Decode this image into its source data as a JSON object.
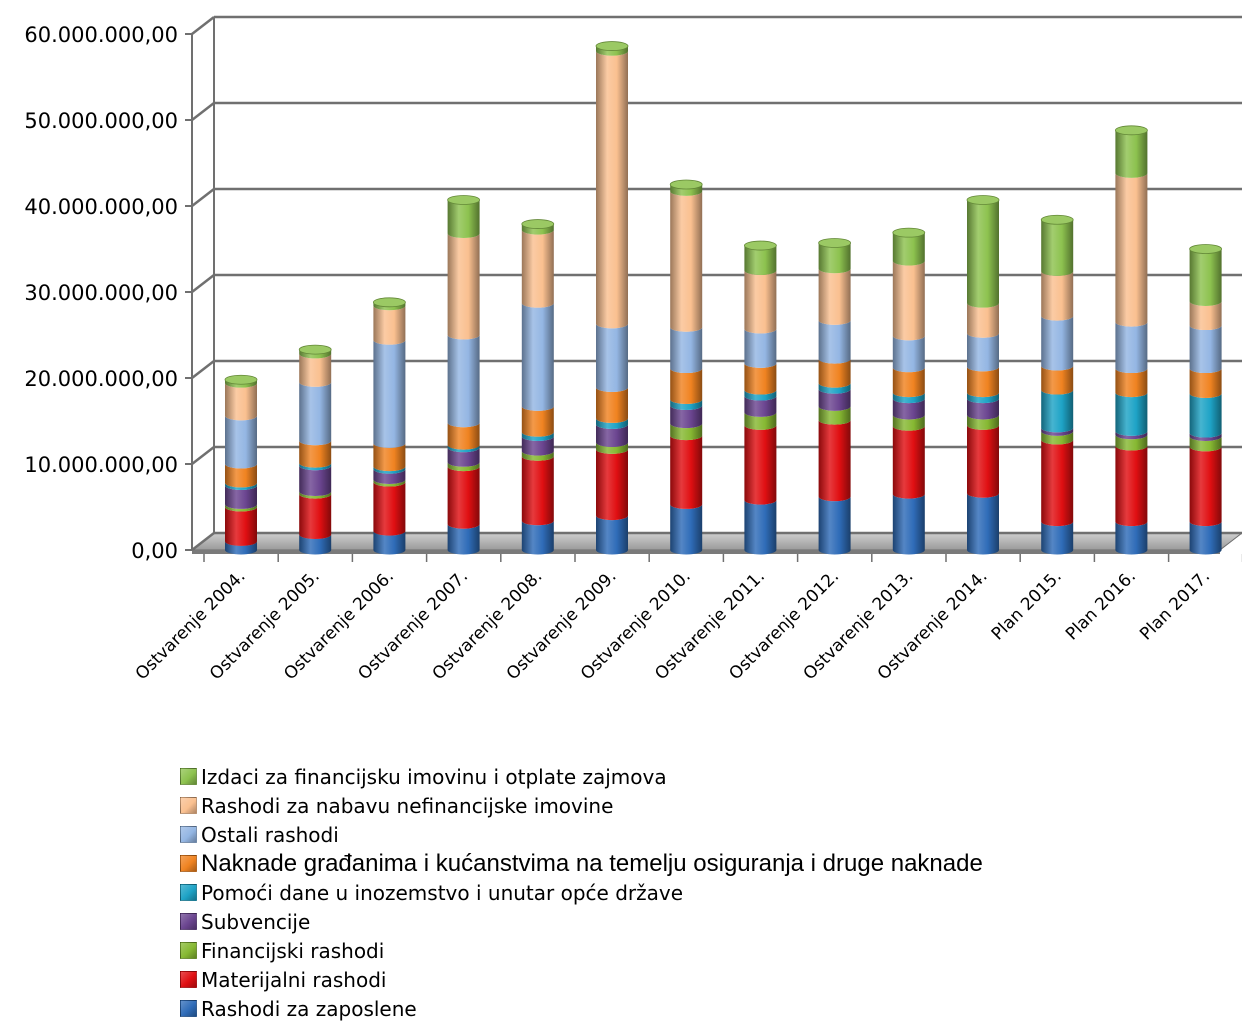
{
  "chart_data": {
    "type": "bar",
    "stacked": true,
    "three_d": true,
    "categories": [
      "Ostvarenje 2004.",
      "Ostvarenje 2005.",
      "Ostvarenje 2006.",
      "Ostvarenje 2007.",
      "Ostvarenje 2008.",
      "Ostvarenje 2009.",
      "Ostvarenje 2010.",
      "Ostvarenje 2011.",
      "Ostvarenje 2012.",
      "Ostvarenje 2013.",
      "Ostvarenje 2014.",
      "Plan 2015.",
      "Plan 2016.",
      "Plan 2017."
    ],
    "y_ticks": [
      "0,00",
      "10.000.000,00",
      "20.000.000,00",
      "30.000.000,00",
      "40.000.000,00",
      "50.000.000,00",
      "60.000.000,00"
    ],
    "ylim": [
      0,
      60000000
    ],
    "grid": true,
    "legend_position": "bottom",
    "series": [
      {
        "name": "Rashodi za zaposlene",
        "color": "#2f6cb8",
        "values": [
          1000000,
          1800000,
          2200000,
          3000000,
          3400000,
          4000000,
          5300000,
          5800000,
          6200000,
          6500000,
          6600000,
          3300000,
          3300000,
          3300000
        ]
      },
      {
        "name": "Materijalni rashodi",
        "color": "#e00f12",
        "values": [
          4000000,
          4700000,
          5700000,
          6700000,
          7500000,
          7700000,
          8000000,
          8700000,
          8900000,
          7900000,
          7900000,
          9500000,
          8800000,
          8700000
        ]
      },
      {
        "name": "Financijski rashodi",
        "color": "#86b832",
        "values": [
          300000,
          300000,
          300000,
          500000,
          600000,
          800000,
          1400000,
          1500000,
          1600000,
          1300000,
          1200000,
          1000000,
          1300000,
          1200000
        ]
      },
      {
        "name": "Subvencije",
        "color": "#6b4590",
        "values": [
          2200000,
          3000000,
          1200000,
          1700000,
          1700000,
          2100000,
          2100000,
          1900000,
          2000000,
          1900000,
          1900000,
          400000,
          400000,
          400000
        ]
      },
      {
        "name": "Pomoći dane u inozemstvo i unutar opće države",
        "color": "#1ea3c6",
        "values": [
          300000,
          300000,
          300000,
          300000,
          500000,
          700000,
          700000,
          700000,
          700000,
          700000,
          700000,
          4400000,
          4500000,
          4600000
        ]
      },
      {
        "name": "Naknade građanima i kućanstvima na temelju osiguranja i druge naknade",
        "color": "#f08321",
        "values": [
          2200000,
          2600000,
          2700000,
          2600000,
          3000000,
          3600000,
          3600000,
          3100000,
          2800000,
          2900000,
          3000000,
          2800000,
          2800000,
          2900000
        ]
      },
      {
        "name": "Ostali rashodi",
        "color": "#94b6e3",
        "values": [
          5600000,
          6800000,
          12000000,
          10200000,
          12000000,
          7400000,
          4800000,
          4000000,
          4500000,
          3700000,
          3900000,
          5800000,
          5400000,
          5000000
        ]
      },
      {
        "name": "Rashodi za nabavu nefinancijske imovine",
        "color": "#fac090",
        "values": [
          3800000,
          3300000,
          4000000,
          11800000,
          8500000,
          31700000,
          15800000,
          6800000,
          6000000,
          8700000,
          3500000,
          5200000,
          17300000,
          2800000
        ]
      },
      {
        "name": "Izdaci za financijsku imovinu i otplate zajmova",
        "color": "#8dc24f",
        "values": [
          400000,
          500000,
          400000,
          3900000,
          700000,
          600000,
          800000,
          2900000,
          3000000,
          3300000,
          12000000,
          6000000,
          5000000,
          6100000
        ]
      }
    ]
  }
}
